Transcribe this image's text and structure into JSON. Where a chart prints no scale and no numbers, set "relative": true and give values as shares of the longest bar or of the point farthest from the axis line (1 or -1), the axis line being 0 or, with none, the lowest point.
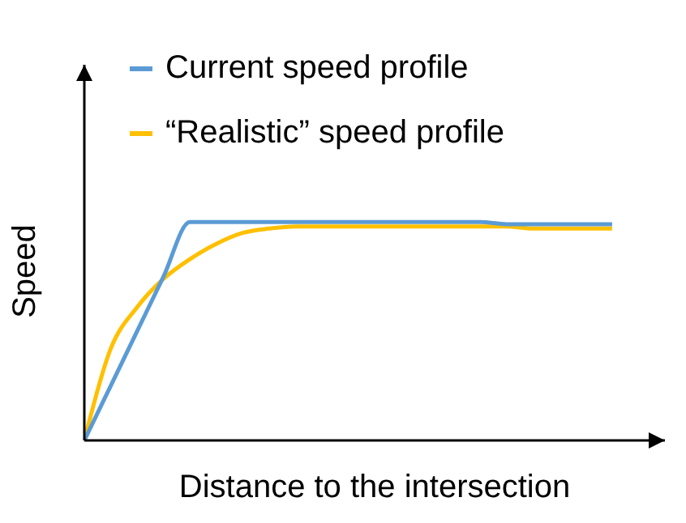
{
  "chart_data": {
    "type": "line",
    "relative": true,
    "xlabel": "Distance to the intersection",
    "ylabel": "Speed",
    "legend": "top",
    "categories": [
      null,
      null,
      null,
      null,
      null,
      null,
      null,
      null,
      null,
      null,
      null,
      null,
      null,
      null,
      null,
      null,
      null,
      null,
      null,
      null,
      null
    ],
    "series": [
      {
        "name": "Current speed profile",
        "color": "#5b9bd5",
        "values": [
          0,
          0.25,
          0.5,
          0.75,
          1,
          1,
          1,
          1,
          1,
          1,
          1,
          1,
          1,
          1,
          1,
          1,
          0.99,
          0.99,
          0.99,
          0.99,
          0.99
        ]
      },
      {
        "name": "“Realistic” speed profile",
        "color": "#ffc000",
        "values": [
          0,
          0.42,
          0.61,
          0.74,
          0.83,
          0.9,
          0.95,
          0.97,
          0.98,
          0.98,
          0.98,
          0.98,
          0.98,
          0.98,
          0.98,
          0.98,
          0.98,
          0.97,
          0.97,
          0.97,
          0.97
        ]
      }
    ]
  }
}
